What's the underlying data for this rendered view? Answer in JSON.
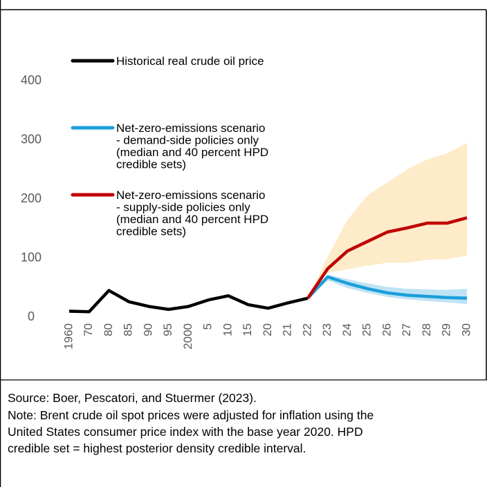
{
  "chart_data": {
    "type": "line",
    "categories": [
      "1960",
      "70",
      "80",
      "85",
      "90",
      "95",
      "2000",
      "5",
      "10",
      "15",
      "20",
      "21",
      "22",
      "23",
      "24",
      "25",
      "26",
      "27",
      "28",
      "29",
      "30"
    ],
    "ylim": [
      0,
      400
    ],
    "yticks": [
      0,
      100,
      200,
      300,
      400
    ],
    "series": [
      {
        "name": [
          "Historical real crude oil price"
        ],
        "color": "#000000",
        "values": [
          10,
          9,
          45,
          26,
          18,
          13,
          18,
          29,
          36,
          21,
          15,
          24,
          32,
          null,
          null,
          null,
          null,
          null,
          null,
          null,
          null
        ]
      },
      {
        "name": [
          "Net-zero-emissions scenario",
          "- demand-side policies only",
          "(median and 40 percent HPD",
          "credible sets)"
        ],
        "color": "#1a9fdb",
        "band_color": "#bfe3f4",
        "values": [
          null,
          null,
          null,
          null,
          null,
          null,
          null,
          null,
          null,
          null,
          null,
          null,
          32,
          68,
          57,
          48,
          41,
          37,
          35,
          33,
          32
        ],
        "band_low": [
          null,
          null,
          null,
          null,
          null,
          null,
          null,
          null,
          null,
          null,
          null,
          null,
          32,
          62,
          49,
          41,
          34,
          30,
          27,
          25,
          22
        ],
        "band_high": [
          null,
          null,
          null,
          null,
          null,
          null,
          null,
          null,
          null,
          null,
          null,
          null,
          32,
          72,
          64,
          57,
          51,
          48,
          47,
          46,
          48
        ]
      },
      {
        "name": [
          "Net-zero-emissions scenario",
          "- supply-side policies only",
          "(median and 40 percent HPD",
          "credible sets)"
        ],
        "color": "#c00000",
        "band_color": "#fdebc9",
        "values": [
          null,
          null,
          null,
          null,
          null,
          null,
          null,
          null,
          null,
          null,
          null,
          null,
          32,
          82,
          112,
          128,
          144,
          151,
          159,
          159,
          168
        ],
        "band_low": [
          null,
          null,
          null,
          null,
          null,
          null,
          null,
          null,
          null,
          null,
          null,
          null,
          32,
          75,
          81,
          87,
          92,
          92,
          97,
          98,
          104
        ],
        "band_high": [
          null,
          null,
          null,
          null,
          null,
          null,
          null,
          null,
          null,
          null,
          null,
          null,
          32,
          102,
          165,
          206,
          228,
          250,
          267,
          277,
          295
        ]
      }
    ]
  },
  "footer": {
    "source": "Source: Boer, Pescatori, and Stuermer (2023).",
    "note": [
      "Note: Brent crude oil spot prices were adjusted for inflation using the",
      "United States consumer price index with the base year 2020. HPD",
      "credible set = highest posterior density credible interval."
    ]
  }
}
